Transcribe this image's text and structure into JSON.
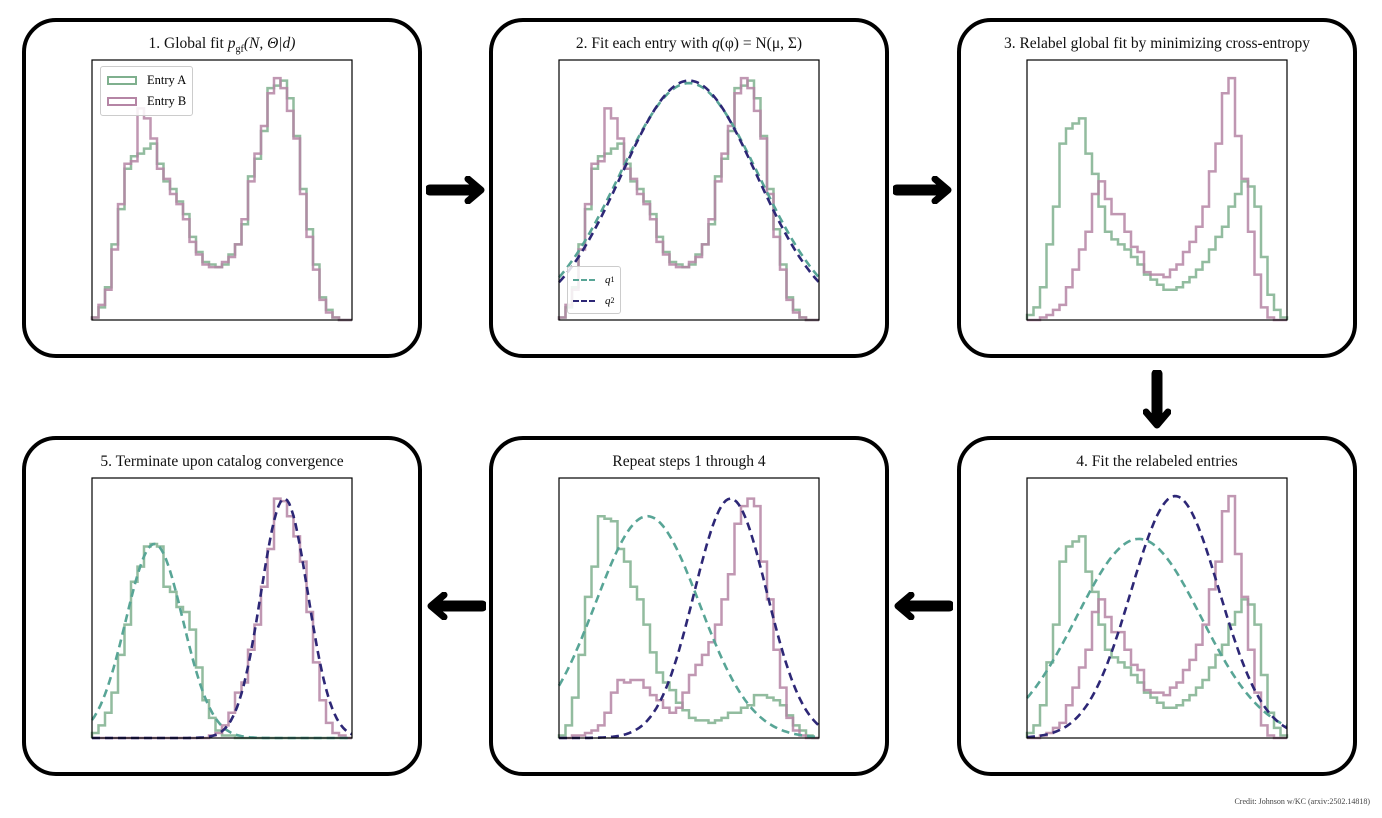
{
  "colors": {
    "entry_a": "#7fb08e",
    "entry_b": "#b585a5",
    "q1": "#58a596",
    "q2": "#2d2776",
    "frame": "#000000"
  },
  "panels": [
    {
      "id": "p1",
      "title_prefix": "1. Global fit ",
      "title_math_var": "p",
      "title_math_sub": "gf",
      "title_math_rest": "(N, Θ|d)",
      "legend": {
        "entry_a": "Entry A",
        "entry_b": "Entry B"
      },
      "hist_a": [
        0.01,
        0.05,
        0.13,
        0.3,
        0.44,
        0.6,
        0.65,
        0.66,
        0.68,
        0.7,
        0.62,
        0.55,
        0.52,
        0.47,
        0.42,
        0.33,
        0.27,
        0.23,
        0.22,
        0.21,
        0.22,
        0.26,
        0.3,
        0.38,
        0.57,
        0.64,
        0.75,
        0.92,
        0.93,
        0.95,
        0.88,
        0.73,
        0.52,
        0.36,
        0.22,
        0.09,
        0.04,
        0.01,
        0,
        0
      ],
      "hist_b": [
        0.01,
        0.06,
        0.12,
        0.28,
        0.46,
        0.62,
        0.63,
        0.84,
        0.8,
        0.72,
        0.6,
        0.56,
        0.5,
        0.46,
        0.4,
        0.31,
        0.26,
        0.22,
        0.21,
        0.21,
        0.23,
        0.25,
        0.3,
        0.4,
        0.55,
        0.66,
        0.77,
        0.9,
        0.96,
        0.92,
        0.83,
        0.72,
        0.5,
        0.33,
        0.2,
        0.08,
        0.03,
        0.01,
        0,
        0
      ],
      "fits": []
    },
    {
      "id": "p2",
      "title_prefix": "2. Fit each entry with ",
      "title_math_var": "q",
      "title_math_sub": "",
      "title_math_rest": "(φ) = N(μ, Σ)",
      "legend": {
        "q1": "q",
        "q1_sub": "1",
        "q2": "q",
        "q2_sub": "2"
      },
      "hist_a": [
        0.01,
        0.05,
        0.13,
        0.3,
        0.44,
        0.6,
        0.65,
        0.66,
        0.68,
        0.7,
        0.62,
        0.55,
        0.52,
        0.47,
        0.42,
        0.33,
        0.27,
        0.23,
        0.22,
        0.21,
        0.22,
        0.26,
        0.3,
        0.38,
        0.57,
        0.64,
        0.75,
        0.92,
        0.93,
        0.95,
        0.88,
        0.73,
        0.52,
        0.36,
        0.22,
        0.09,
        0.04,
        0.01,
        0,
        0
      ],
      "hist_b": [
        0.01,
        0.06,
        0.12,
        0.28,
        0.46,
        0.62,
        0.63,
        0.84,
        0.8,
        0.72,
        0.6,
        0.56,
        0.5,
        0.46,
        0.4,
        0.31,
        0.26,
        0.22,
        0.21,
        0.21,
        0.23,
        0.25,
        0.3,
        0.4,
        0.55,
        0.66,
        0.77,
        0.9,
        0.96,
        0.92,
        0.83,
        0.72,
        0.5,
        0.33,
        0.2,
        0.08,
        0.03,
        0.01,
        0,
        0
      ],
      "fits": [
        {
          "name": "q1",
          "mu": 0.5,
          "sigma": 0.27,
          "amp": 0.94
        },
        {
          "name": "q2",
          "mu": 0.5,
          "sigma": 0.26,
          "amp": 0.95
        }
      ]
    },
    {
      "id": "p3",
      "title_prefix": "3. Relabel global fit by minimizing cross-entropy",
      "title_math_var": "",
      "title_math_sub": "",
      "title_math_rest": "",
      "hist_a": [
        0.02,
        0.05,
        0.13,
        0.3,
        0.45,
        0.7,
        0.76,
        0.78,
        0.8,
        0.66,
        0.58,
        0.45,
        0.35,
        0.32,
        0.3,
        0.28,
        0.25,
        0.22,
        0.18,
        0.16,
        0.14,
        0.12,
        0.12,
        0.13,
        0.15,
        0.17,
        0.2,
        0.23,
        0.28,
        0.33,
        0.37,
        0.45,
        0.5,
        0.55,
        0.53,
        0.45,
        0.25,
        0.1,
        0.04,
        0.01
      ],
      "hist_b": [
        0,
        0,
        0.01,
        0.02,
        0.04,
        0.06,
        0.13,
        0.2,
        0.28,
        0.35,
        0.5,
        0.55,
        0.48,
        0.42,
        0.42,
        0.35,
        0.29,
        0.27,
        0.19,
        0.18,
        0.18,
        0.17,
        0.2,
        0.22,
        0.27,
        0.31,
        0.37,
        0.45,
        0.59,
        0.7,
        0.9,
        0.96,
        0.73,
        0.56,
        0.35,
        0.18,
        0.05,
        0.01,
        0,
        0
      ],
      "fits": []
    },
    {
      "id": "p4",
      "title_prefix": "4. Fit the relabeled entries",
      "title_math_var": "",
      "title_math_sub": "",
      "title_math_rest": "",
      "hist_a": [
        0.02,
        0.05,
        0.13,
        0.3,
        0.45,
        0.7,
        0.76,
        0.78,
        0.8,
        0.66,
        0.58,
        0.45,
        0.35,
        0.32,
        0.3,
        0.28,
        0.25,
        0.22,
        0.18,
        0.16,
        0.14,
        0.12,
        0.12,
        0.13,
        0.15,
        0.17,
        0.2,
        0.23,
        0.28,
        0.33,
        0.37,
        0.45,
        0.5,
        0.55,
        0.53,
        0.45,
        0.25,
        0.1,
        0.04,
        0.01
      ],
      "hist_b": [
        0,
        0,
        0.01,
        0.02,
        0.04,
        0.06,
        0.13,
        0.2,
        0.28,
        0.35,
        0.5,
        0.55,
        0.48,
        0.42,
        0.42,
        0.35,
        0.29,
        0.27,
        0.19,
        0.18,
        0.18,
        0.17,
        0.2,
        0.22,
        0.27,
        0.31,
        0.37,
        0.45,
        0.59,
        0.7,
        0.9,
        0.96,
        0.73,
        0.56,
        0.35,
        0.18,
        0.05,
        0.01,
        0,
        0
      ],
      "fits": [
        {
          "name": "q1",
          "mu": 0.43,
          "sigma": 0.24,
          "amp": 0.79
        },
        {
          "name": "q2",
          "mu": 0.57,
          "sigma": 0.17,
          "amp": 0.96
        }
      ]
    },
    {
      "id": "p5",
      "title_prefix": "Repeat steps 1 through 4",
      "title_math_var": "",
      "title_math_sub": "",
      "title_math_rest": "",
      "hist_a": [
        0.01,
        0.05,
        0.16,
        0.33,
        0.56,
        0.68,
        0.88,
        0.87,
        0.86,
        0.75,
        0.7,
        0.6,
        0.55,
        0.45,
        0.34,
        0.26,
        0.22,
        0.19,
        0.14,
        0.11,
        0.08,
        0.07,
        0.07,
        0.06,
        0.07,
        0.08,
        0.1,
        0.1,
        0.12,
        0.13,
        0.17,
        0.17,
        0.16,
        0.15,
        0.13,
        0.09,
        0.05,
        0.03,
        0.01,
        0
      ],
      "hist_b": [
        0,
        0,
        0.01,
        0.01,
        0.02,
        0.03,
        0.05,
        0.1,
        0.18,
        0.23,
        0.22,
        0.23,
        0.23,
        0.2,
        0.17,
        0.15,
        0.12,
        0.1,
        0.12,
        0.18,
        0.25,
        0.29,
        0.33,
        0.38,
        0.45,
        0.55,
        0.65,
        0.85,
        0.92,
        0.95,
        0.92,
        0.7,
        0.55,
        0.35,
        0.2,
        0.08,
        0.03,
        0.01,
        0,
        0
      ],
      "fits": [
        {
          "name": "q1",
          "mu": 0.34,
          "sigma": 0.2,
          "amp": 0.88
        },
        {
          "name": "q2",
          "mu": 0.66,
          "sigma": 0.14,
          "amp": 0.95
        }
      ]
    },
    {
      "id": "p6",
      "title_prefix": "5. Terminate upon catalog convergence",
      "title_math_var": "",
      "title_math_sub": "",
      "title_math_rest": "",
      "hist_a": [
        0.02,
        0.05,
        0.1,
        0.18,
        0.33,
        0.45,
        0.62,
        0.68,
        0.76,
        0.77,
        0.76,
        0.6,
        0.58,
        0.52,
        0.5,
        0.43,
        0.28,
        0.15,
        0.08,
        0.03,
        0.01,
        0.01,
        0,
        0,
        0,
        0,
        0,
        0,
        0,
        0,
        0,
        0,
        0,
        0,
        0,
        0,
        0,
        0,
        0,
        0
      ],
      "hist_b": [
        0,
        0,
        0,
        0,
        0,
        0,
        0,
        0,
        0,
        0,
        0,
        0,
        0,
        0,
        0,
        0,
        0,
        0,
        0.01,
        0.02,
        0.05,
        0.1,
        0.18,
        0.22,
        0.35,
        0.45,
        0.6,
        0.75,
        0.95,
        0.94,
        0.88,
        0.8,
        0.7,
        0.5,
        0.3,
        0.15,
        0.06,
        0.02,
        0.01,
        0
      ],
      "fits": [
        {
          "name": "q1",
          "mu": 0.24,
          "sigma": 0.11,
          "amp": 0.77
        },
        {
          "name": "q2",
          "mu": 0.74,
          "sigma": 0.09,
          "amp": 0.95
        }
      ]
    }
  ],
  "credit": "Credit: Johnson w/KC (arxiv:2502.14818)"
}
